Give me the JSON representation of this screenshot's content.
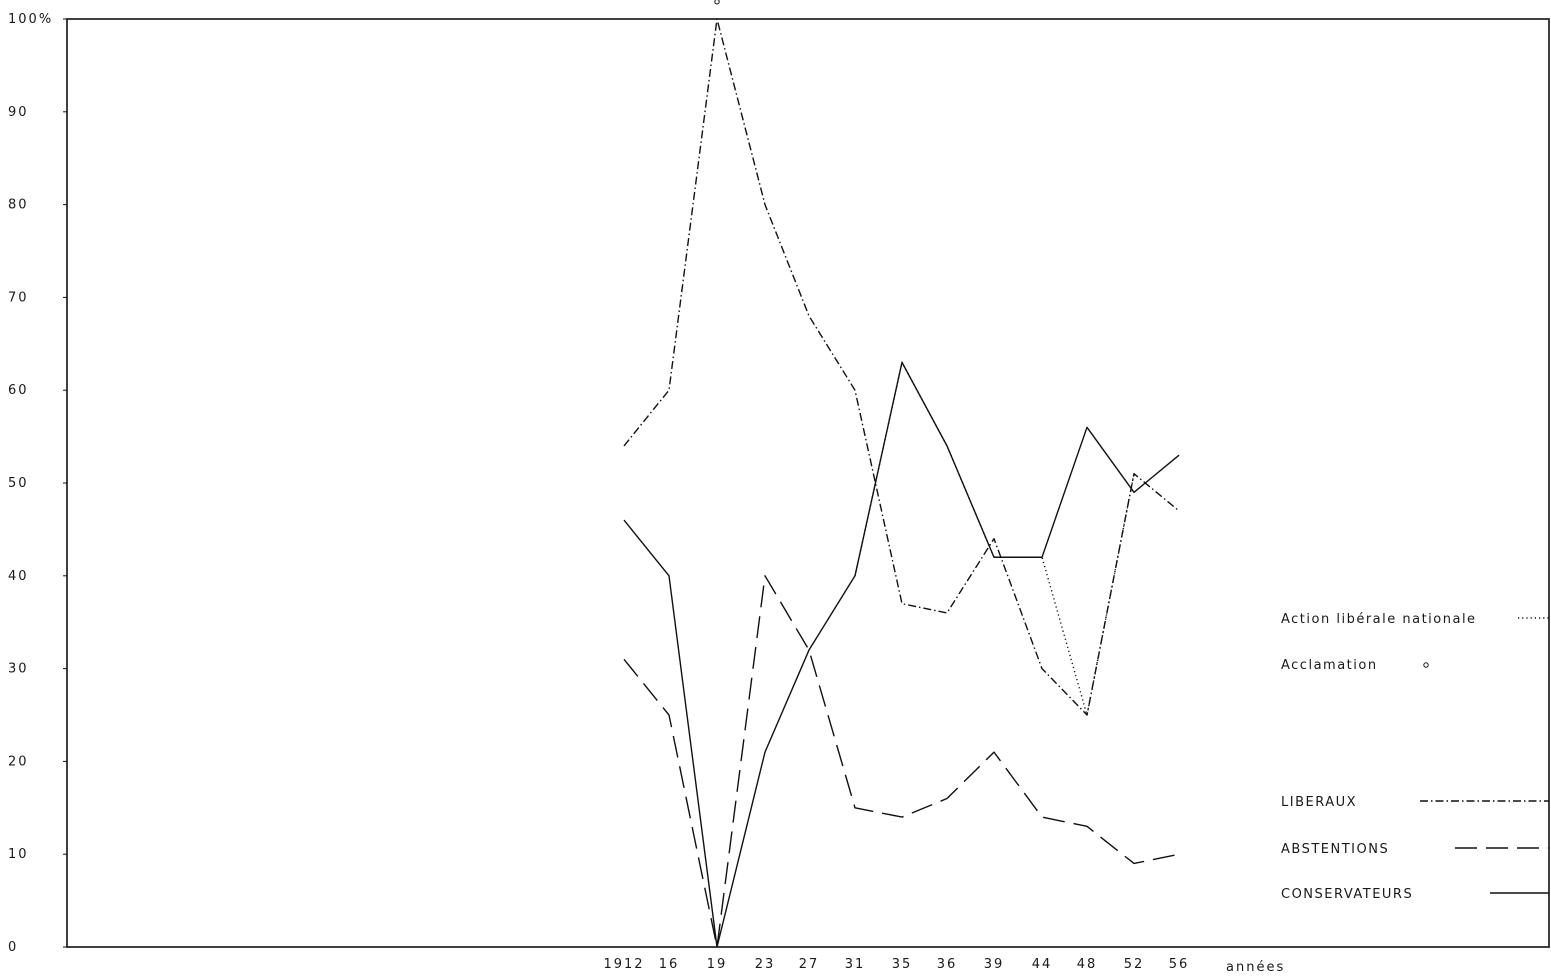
{
  "chart_data": {
    "type": "line",
    "x_tick_labels": [
      "1912",
      "16",
      "19",
      "23",
      "27",
      "31",
      "35",
      "36",
      "39",
      "44",
      "48",
      "52",
      "56"
    ],
    "y_tick_labels": [
      "0",
      "10",
      "20",
      "30",
      "40",
      "50",
      "60",
      "70",
      "80",
      "90",
      "100%"
    ],
    "y_ticks": [
      0,
      10,
      20,
      30,
      40,
      50,
      60,
      70,
      80,
      90,
      100
    ],
    "ylim": [
      0,
      100
    ],
    "xlabel": "années",
    "ylabel": "",
    "grid": false,
    "legend_position": "right",
    "series": [
      {
        "name": "Action libérale nationale",
        "style": "dotted",
        "x": [
          "31",
          "35",
          "36",
          "39",
          "44",
          "48",
          "52"
        ],
        "values": [
          40,
          63,
          54,
          42,
          42,
          25,
          51
        ]
      },
      {
        "name": "LIBERAUX",
        "style": "dashdot",
        "x": [
          "1912",
          "16",
          "19",
          "23",
          "27",
          "31",
          "35",
          "36",
          "39",
          "44",
          "48",
          "52",
          "56"
        ],
        "values": [
          54,
          60,
          100,
          80,
          68,
          60,
          37,
          36,
          44,
          30,
          25,
          51,
          47
        ]
      },
      {
        "name": "ABSTENTIONS",
        "style": "dashed",
        "x": [
          "1912",
          "16",
          "19",
          "23",
          "27",
          "31",
          "35",
          "36",
          "39",
          "44",
          "48",
          "52",
          "56"
        ],
        "values": [
          31,
          25,
          0,
          40,
          32,
          15,
          14,
          16,
          21,
          14,
          13,
          9,
          10
        ]
      },
      {
        "name": "CONSERVATEURS",
        "style": "solid",
        "x": [
          "1912",
          "16",
          "19",
          "23",
          "27",
          "31",
          "35",
          "36",
          "39",
          "44",
          "48",
          "52",
          "56"
        ],
        "values": [
          46,
          40,
          0,
          21,
          32,
          40,
          63,
          54,
          42,
          42,
          56,
          49,
          53
        ]
      }
    ],
    "acclamation": {
      "name": "Acclamation",
      "marker": "circle",
      "x": "19",
      "value": 101
    }
  }
}
